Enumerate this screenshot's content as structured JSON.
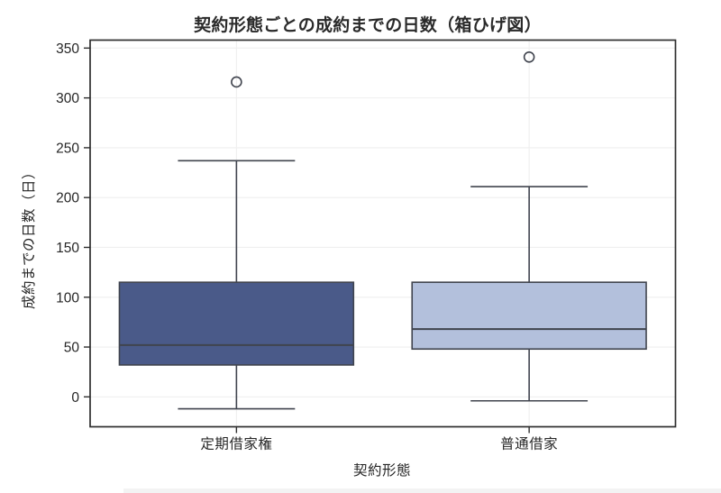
{
  "chart_data": {
    "type": "boxplot",
    "title": "契約形態ごとの成約までの日数（箱ひげ図）",
    "xlabel": "契約形態",
    "ylabel": "成約までの日数（日）",
    "categories": [
      "定期借家権",
      "普通借家"
    ],
    "yticks": [
      0,
      50,
      100,
      150,
      200,
      250,
      300,
      350
    ],
    "ylim": [
      -30,
      358
    ],
    "grid": true,
    "legend": "none",
    "series": [
      {
        "category": "定期借家権",
        "whisker_low": -12,
        "q1": 32,
        "median": 52,
        "q3": 115,
        "whisker_high": 237,
        "outliers": [
          316
        ],
        "box_color": "#4a5a89"
      },
      {
        "category": "普通借家",
        "whisker_low": -4,
        "q1": 48,
        "median": 68,
        "q3": 115,
        "whisker_high": 211,
        "outliers": [
          341
        ],
        "box_color": "#b3c0dc"
      }
    ],
    "colors": {
      "line": "#40444e",
      "frame": "#2e2e2e",
      "grid": "#efefef",
      "tick_text": "#262626",
      "title_text": "#2a2a2a",
      "background": "#ffffff",
      "bottom_strip": "#f3f3f3"
    }
  }
}
